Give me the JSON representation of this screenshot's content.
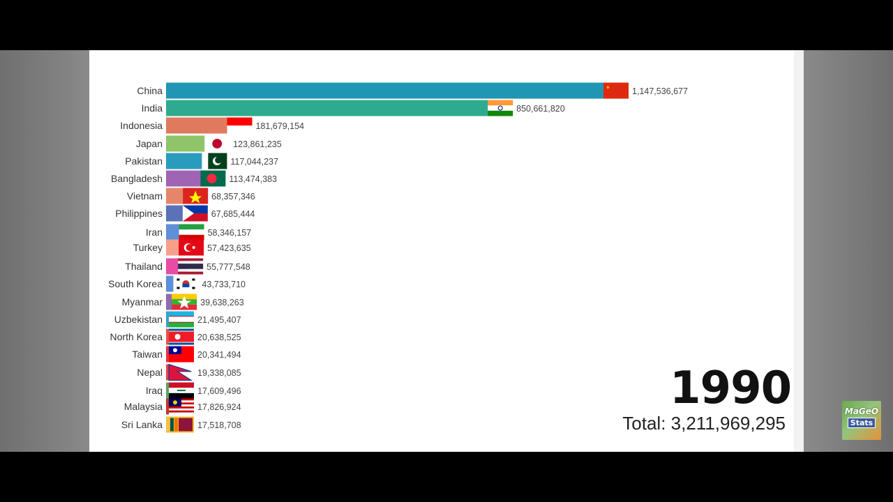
{
  "chart_data": {
    "type": "bar",
    "orientation": "horizontal",
    "categories": [
      "China",
      "India",
      "Indonesia",
      "Japan",
      "Pakistan",
      "Bangladesh",
      "Vietnam",
      "Philippines",
      "Iran",
      "Turkey",
      "Thailand",
      "South Korea",
      "Myanmar",
      "Uzbekistan",
      "North Korea",
      "Taiwan",
      "Nepal",
      "Iraq",
      "Malaysia",
      "Sri Lanka"
    ],
    "values": [
      1147536677,
      850661820,
      181679154,
      123861235,
      117044237,
      113474383,
      68357346,
      67685444,
      58346157,
      57423635,
      55777548,
      43733710,
      39638263,
      21495407,
      20638525,
      20341494,
      19338085,
      17609496,
      17826924,
      17518708
    ],
    "value_labels": [
      "1,147,536,677",
      "850,661,820",
      "181,679,154",
      "123,861,235",
      "117,044,237",
      "113,474,383",
      "68,357,346",
      "67,685,444",
      "58,346,157",
      "57,423,635",
      "55,777,548",
      "43,733,710",
      "39,638,263",
      "21,495,407",
      "20,638,525",
      "20,341,494",
      "19,338,085",
      "17,609,496",
      "17,826,924",
      "17,518,708"
    ],
    "bar_colors": [
      "#2196b4",
      "#2eab8e",
      "#e07a5f",
      "#8fc46a",
      "#2a9bbd",
      "#a064b4",
      "#e5866a",
      "#5a73b8",
      "#5f8fd6",
      "#f6a08b",
      "#e84ca5",
      "#5b8fd6",
      "#8e6bb0",
      "#3d9ecf",
      "#e0584f",
      "#e03a3a",
      "#d94b4b",
      "#5aa469",
      "#c0392b",
      "#f2c14e"
    ],
    "flags": [
      "china-flag",
      "india-flag",
      "indonesia-flag",
      "japan-flag",
      "pakistan-flag",
      "bangladesh-flag",
      "vietnam-flag",
      "philippines-flag",
      "iran-flag",
      "turkey-flag",
      "thailand-flag",
      "south-korea-flag",
      "myanmar-flag",
      "uzbekistan-flag",
      "north-korea-flag",
      "taiwan-flag",
      "nepal-flag",
      "iraq-flag",
      "malaysia-flag",
      "sri-lanka-flag"
    ],
    "xlim": [
      0,
      1147536677
    ],
    "grid": false,
    "legend": "none"
  },
  "overlay": {
    "year": "1990",
    "total": "Total: 3,211,969,295"
  },
  "logo": {
    "line1": "MaGeO",
    "line2": "Stats"
  }
}
